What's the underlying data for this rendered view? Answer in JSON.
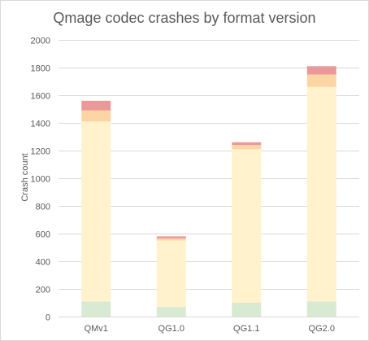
{
  "chart_data": {
    "type": "bar",
    "stacked": true,
    "title": "Qmage codec crashes by format version",
    "xlabel": "",
    "ylabel": "Crash count",
    "ylim": [
      0,
      2000
    ],
    "yticks": [
      0,
      200,
      400,
      600,
      800,
      1000,
      1200,
      1400,
      1600,
      1800,
      2000
    ],
    "grid": true,
    "legend": "none",
    "categories": [
      "QMv1",
      "QG1.0",
      "QG1.1",
      "QG2.0"
    ],
    "series": [
      {
        "color": "#d9ead3",
        "values": [
          110,
          70,
          100,
          110
        ]
      },
      {
        "color": "#fff2cc",
        "values": [
          1300,
          480,
          1110,
          1550
        ]
      },
      {
        "color": "#fcd5a5",
        "values": [
          80,
          15,
          30,
          90
        ]
      },
      {
        "color": "#ea9999",
        "values": [
          70,
          15,
          20,
          60
        ]
      }
    ]
  }
}
